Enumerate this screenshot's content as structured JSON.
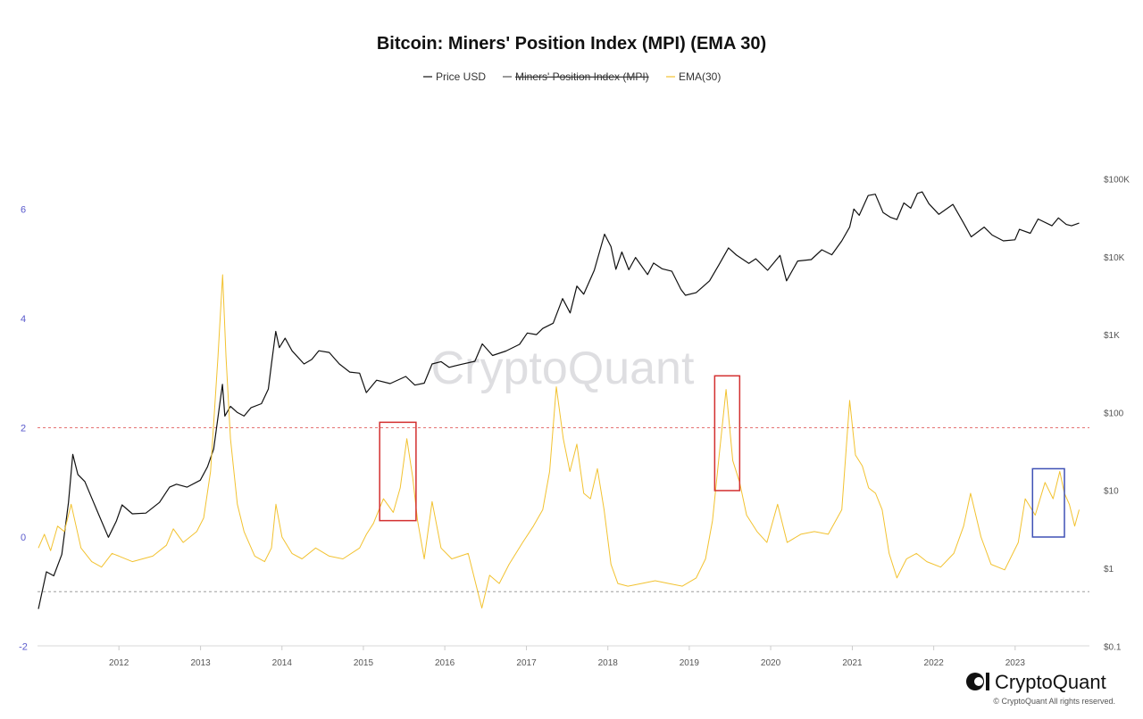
{
  "chart_data": {
    "type": "line",
    "title": "Bitcoin: Miners' Position Index (MPI) (EMA 30)",
    "legend": {
      "placement": "top-center",
      "entries": [
        {
          "name": "Price USD",
          "color": "#111111",
          "hidden": false
        },
        {
          "name": "Miners' Position Index (MPI)",
          "color": "#555555",
          "hidden": true
        },
        {
          "name": "EMA(30)",
          "color": "#f2c230",
          "hidden": false
        }
      ]
    },
    "x_axis": {
      "type": "date",
      "range": [
        "2011-01-01",
        "2023-11-30"
      ],
      "ticks": [
        "2012",
        "2013",
        "2014",
        "2015",
        "2016",
        "2017",
        "2018",
        "2019",
        "2020",
        "2021",
        "2022",
        "2023"
      ]
    },
    "y_axis_left": {
      "label": "",
      "range": [
        -2,
        7
      ],
      "ticks": [
        "6",
        "4",
        "2",
        "0",
        "-2"
      ]
    },
    "y_axis_right": {
      "label": "",
      "scale": "log",
      "range": [
        0.1,
        100000
      ],
      "ticks": [
        "$100K",
        "$10K",
        "$1K",
        "$100",
        "$10",
        "$1",
        "$0.1"
      ]
    },
    "threshold_lines": [
      {
        "value": 2,
        "color": "#e57373",
        "style": "dashed"
      },
      {
        "value": -1,
        "color": "#9e9e9e",
        "style": "dashed"
      }
    ],
    "highlight_boxes": [
      {
        "x_start": "2015-03-15",
        "x_end": "2015-08-25",
        "y_min": 0.3,
        "y_max": 2.1,
        "color": "#d32f2f"
      },
      {
        "x_start": "2019-04-25",
        "x_end": "2019-08-15",
        "y_min": 0.85,
        "y_max": 2.95,
        "color": "#d32f2f"
      },
      {
        "x_start": "2023-03-20",
        "x_end": "2023-08-10",
        "y_min": 0.0,
        "y_max": 1.25,
        "color": "#3f51b5"
      }
    ],
    "series": [
      {
        "name": "Price USD",
        "axis": "right",
        "color": "#111111",
        "points": [
          [
            "2011-01-05",
            0.3
          ],
          [
            "2011-02-10",
            0.9
          ],
          [
            "2011-03-15",
            0.8
          ],
          [
            "2011-04-20",
            1.5
          ],
          [
            "2011-05-20",
            7
          ],
          [
            "2011-06-08",
            29
          ],
          [
            "2011-07-01",
            16
          ],
          [
            "2011-08-01",
            13
          ],
          [
            "2011-09-01",
            8
          ],
          [
            "2011-10-01",
            5
          ],
          [
            "2011-11-15",
            2.5
          ],
          [
            "2011-12-20",
            4
          ],
          [
            "2012-01-15",
            6.5
          ],
          [
            "2012-03-01",
            5
          ],
          [
            "2012-05-01",
            5.1
          ],
          [
            "2012-07-01",
            7
          ],
          [
            "2012-08-15",
            11
          ],
          [
            "2012-09-15",
            12
          ],
          [
            "2012-11-01",
            11
          ],
          [
            "2012-12-31",
            13.5
          ],
          [
            "2013-02-01",
            20
          ],
          [
            "2013-03-01",
            34
          ],
          [
            "2013-04-09",
            230
          ],
          [
            "2013-04-20",
            90
          ],
          [
            "2013-05-15",
            120
          ],
          [
            "2013-06-15",
            100
          ],
          [
            "2013-07-15",
            90
          ],
          [
            "2013-08-15",
            115
          ],
          [
            "2013-10-01",
            130
          ],
          [
            "2013-11-01",
            200
          ],
          [
            "2013-11-15",
            420
          ],
          [
            "2013-12-04",
            1100
          ],
          [
            "2013-12-20",
            680
          ],
          [
            "2014-01-15",
            900
          ],
          [
            "2014-02-15",
            620
          ],
          [
            "2014-04-10",
            420
          ],
          [
            "2014-05-15",
            480
          ],
          [
            "2014-06-15",
            620
          ],
          [
            "2014-08-01",
            590
          ],
          [
            "2014-09-15",
            420
          ],
          [
            "2014-11-01",
            330
          ],
          [
            "2014-12-15",
            320
          ],
          [
            "2015-01-14",
            180
          ],
          [
            "2015-03-01",
            260
          ],
          [
            "2015-05-01",
            235
          ],
          [
            "2015-07-10",
            290
          ],
          [
            "2015-08-20",
            225
          ],
          [
            "2015-10-01",
            238
          ],
          [
            "2015-11-05",
            420
          ],
          [
            "2015-12-15",
            450
          ],
          [
            "2016-01-20",
            380
          ],
          [
            "2016-03-15",
            415
          ],
          [
            "2016-05-15",
            455
          ],
          [
            "2016-06-17",
            760
          ],
          [
            "2016-08-02",
            540
          ],
          [
            "2016-10-01",
            615
          ],
          [
            "2016-12-01",
            750
          ],
          [
            "2017-01-05",
            1050
          ],
          [
            "2017-02-15",
            1000
          ],
          [
            "2017-03-15",
            1200
          ],
          [
            "2017-05-01",
            1400
          ],
          [
            "2017-06-12",
            2900
          ],
          [
            "2017-07-16",
            1900
          ],
          [
            "2017-08-15",
            4200
          ],
          [
            "2017-09-15",
            3300
          ],
          [
            "2017-11-01",
            6700
          ],
          [
            "2017-12-17",
            19500
          ],
          [
            "2018-01-15",
            13500
          ],
          [
            "2018-02-06",
            6900
          ],
          [
            "2018-03-05",
            11500
          ],
          [
            "2018-04-05",
            6800
          ],
          [
            "2018-05-05",
            9800
          ],
          [
            "2018-06-28",
            5900
          ],
          [
            "2018-07-25",
            8300
          ],
          [
            "2018-09-01",
            7000
          ],
          [
            "2018-10-15",
            6500
          ],
          [
            "2018-11-25",
            3800
          ],
          [
            "2018-12-15",
            3200
          ],
          [
            "2019-02-01",
            3450
          ],
          [
            "2019-04-02",
            4900
          ],
          [
            "2019-05-15",
            8000
          ],
          [
            "2019-06-26",
            13000
          ],
          [
            "2019-08-01",
            10500
          ],
          [
            "2019-09-25",
            8200
          ],
          [
            "2019-10-26",
            9400
          ],
          [
            "2019-12-18",
            6700
          ],
          [
            "2020-02-12",
            10400
          ],
          [
            "2020-03-12",
            4900
          ],
          [
            "2020-05-01",
            8800
          ],
          [
            "2020-07-01",
            9200
          ],
          [
            "2020-08-17",
            12300
          ],
          [
            "2020-10-01",
            10600
          ],
          [
            "2020-11-15",
            16000
          ],
          [
            "2020-12-20",
            24000
          ],
          [
            "2021-01-08",
            41000
          ],
          [
            "2021-02-01",
            34000
          ],
          [
            "2021-03-13",
            61000
          ],
          [
            "2021-04-14",
            63500
          ],
          [
            "2021-05-19",
            37000
          ],
          [
            "2021-06-22",
            32000
          ],
          [
            "2021-07-20",
            30000
          ],
          [
            "2021-08-20",
            49000
          ],
          [
            "2021-09-20",
            42000
          ],
          [
            "2021-10-20",
            65000
          ],
          [
            "2021-11-10",
            68000
          ],
          [
            "2021-12-10",
            48000
          ],
          [
            "2022-01-24",
            35000
          ],
          [
            "2022-03-28",
            47000
          ],
          [
            "2022-05-12",
            28000
          ],
          [
            "2022-06-18",
            18000
          ],
          [
            "2022-08-15",
            24000
          ],
          [
            "2022-09-20",
            19000
          ],
          [
            "2022-11-09",
            16000
          ],
          [
            "2022-12-31",
            16500
          ],
          [
            "2023-01-20",
            22500
          ],
          [
            "2023-03-10",
            20000
          ],
          [
            "2023-04-14",
            30500
          ],
          [
            "2023-06-15",
            25000
          ],
          [
            "2023-07-14",
            31500
          ],
          [
            "2023-08-18",
            26000
          ],
          [
            "2023-09-11",
            25000
          ],
          [
            "2023-10-15",
            27000
          ]
        ]
      },
      {
        "name": "EMA(30)",
        "axis": "left",
        "color": "#f2c230",
        "points": [
          [
            "2011-01-05",
            -0.2
          ],
          [
            "2011-02-01",
            0.05
          ],
          [
            "2011-03-01",
            -0.25
          ],
          [
            "2011-04-01",
            0.2
          ],
          [
            "2011-05-01",
            0.1
          ],
          [
            "2011-06-01",
            0.6
          ],
          [
            "2011-06-20",
            0.25
          ],
          [
            "2011-07-15",
            -0.2
          ],
          [
            "2011-09-01",
            -0.45
          ],
          [
            "2011-10-15",
            -0.55
          ],
          [
            "2011-12-01",
            -0.3
          ],
          [
            "2012-01-01",
            -0.35
          ],
          [
            "2012-03-01",
            -0.45
          ],
          [
            "2012-06-01",
            -0.35
          ],
          [
            "2012-08-01",
            -0.15
          ],
          [
            "2012-09-01",
            0.15
          ],
          [
            "2012-10-15",
            -0.1
          ],
          [
            "2012-12-15",
            0.1
          ],
          [
            "2013-01-15",
            0.35
          ],
          [
            "2013-02-15",
            1.2
          ],
          [
            "2013-03-20",
            3.3
          ],
          [
            "2013-04-10",
            4.8
          ],
          [
            "2013-04-25",
            3.3
          ],
          [
            "2013-05-15",
            1.8
          ],
          [
            "2013-06-15",
            0.6
          ],
          [
            "2013-07-15",
            0.1
          ],
          [
            "2013-09-01",
            -0.35
          ],
          [
            "2013-10-15",
            -0.45
          ],
          [
            "2013-11-15",
            -0.2
          ],
          [
            "2013-12-05",
            0.6
          ],
          [
            "2014-01-01",
            0.0
          ],
          [
            "2014-02-15",
            -0.3
          ],
          [
            "2014-04-01",
            -0.4
          ],
          [
            "2014-06-01",
            -0.2
          ],
          [
            "2014-08-01",
            -0.35
          ],
          [
            "2014-10-01",
            -0.4
          ],
          [
            "2014-12-15",
            -0.2
          ],
          [
            "2015-01-15",
            0.05
          ],
          [
            "2015-02-15",
            0.25
          ],
          [
            "2015-04-01",
            0.7
          ],
          [
            "2015-05-15",
            0.45
          ],
          [
            "2015-06-15",
            0.9
          ],
          [
            "2015-07-15",
            1.8
          ],
          [
            "2015-08-10",
            1.1
          ],
          [
            "2015-09-01",
            0.3
          ],
          [
            "2015-10-01",
            -0.4
          ],
          [
            "2015-11-05",
            0.65
          ],
          [
            "2015-12-15",
            -0.2
          ],
          [
            "2016-02-01",
            -0.4
          ],
          [
            "2016-04-15",
            -0.3
          ],
          [
            "2016-06-15",
            -1.3
          ],
          [
            "2016-07-20",
            -0.7
          ],
          [
            "2016-09-01",
            -0.85
          ],
          [
            "2016-10-15",
            -0.5
          ],
          [
            "2016-12-15",
            -0.1
          ],
          [
            "2017-02-01",
            0.2
          ],
          [
            "2017-03-15",
            0.5
          ],
          [
            "2017-04-15",
            1.2
          ],
          [
            "2017-05-15",
            2.75
          ],
          [
            "2017-06-15",
            1.8
          ],
          [
            "2017-07-15",
            1.2
          ],
          [
            "2017-08-15",
            1.7
          ],
          [
            "2017-09-15",
            0.8
          ],
          [
            "2017-10-15",
            0.7
          ],
          [
            "2017-11-15",
            1.25
          ],
          [
            "2017-12-15",
            0.5
          ],
          [
            "2018-01-15",
            -0.5
          ],
          [
            "2018-02-15",
            -0.85
          ],
          [
            "2018-04-01",
            -0.9
          ],
          [
            "2018-06-01",
            -0.85
          ],
          [
            "2018-08-01",
            -0.8
          ],
          [
            "2018-10-01",
            -0.85
          ],
          [
            "2018-12-01",
            -0.9
          ],
          [
            "2019-02-01",
            -0.75
          ],
          [
            "2019-03-15",
            -0.4
          ],
          [
            "2019-04-15",
            0.3
          ],
          [
            "2019-05-15",
            1.5
          ],
          [
            "2019-06-15",
            2.7
          ],
          [
            "2019-07-15",
            1.4
          ],
          [
            "2019-08-15",
            1.0
          ],
          [
            "2019-09-15",
            0.4
          ],
          [
            "2019-11-01",
            0.1
          ],
          [
            "2019-12-15",
            -0.1
          ],
          [
            "2020-02-01",
            0.6
          ],
          [
            "2020-03-15",
            -0.1
          ],
          [
            "2020-05-15",
            0.05
          ],
          [
            "2020-07-15",
            0.1
          ],
          [
            "2020-09-15",
            0.05
          ],
          [
            "2020-11-15",
            0.5
          ],
          [
            "2020-12-20",
            2.5
          ],
          [
            "2021-01-15",
            1.5
          ],
          [
            "2021-02-15",
            1.3
          ],
          [
            "2021-03-15",
            0.9
          ],
          [
            "2021-04-15",
            0.8
          ],
          [
            "2021-05-15",
            0.5
          ],
          [
            "2021-06-15",
            -0.3
          ],
          [
            "2021-07-20",
            -0.75
          ],
          [
            "2021-09-01",
            -0.4
          ],
          [
            "2021-10-15",
            -0.3
          ],
          [
            "2021-12-01",
            -0.45
          ],
          [
            "2022-02-01",
            -0.55
          ],
          [
            "2022-04-01",
            -0.3
          ],
          [
            "2022-05-15",
            0.2
          ],
          [
            "2022-06-15",
            0.8
          ],
          [
            "2022-08-01",
            0.0
          ],
          [
            "2022-09-15",
            -0.5
          ],
          [
            "2022-11-15",
            -0.6
          ],
          [
            "2023-01-15",
            -0.1
          ],
          [
            "2023-02-15",
            0.7
          ],
          [
            "2023-04-01",
            0.4
          ],
          [
            "2023-05-15",
            1.0
          ],
          [
            "2023-06-20",
            0.7
          ],
          [
            "2023-07-20",
            1.2
          ],
          [
            "2023-08-10",
            0.8
          ],
          [
            "2023-09-01",
            0.6
          ],
          [
            "2023-09-25",
            0.2
          ],
          [
            "2023-10-15",
            0.5
          ]
        ]
      }
    ]
  },
  "watermark": "CryptoQuant",
  "brand": {
    "name": "CryptoQuant",
    "copyright": "© CryptoQuant All rights reserved."
  }
}
